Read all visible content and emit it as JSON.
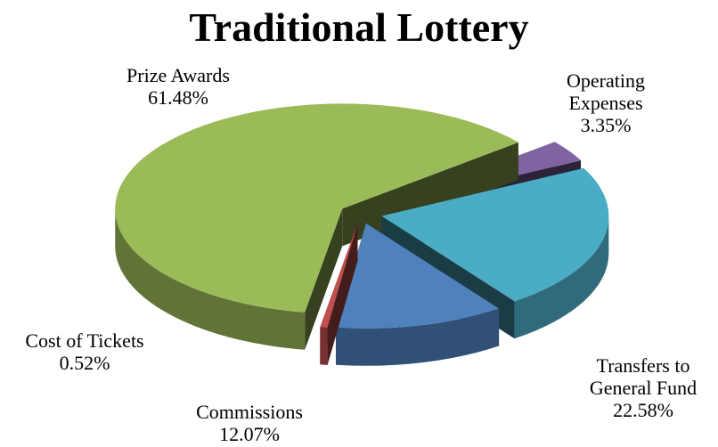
{
  "chart_data": {
    "type": "pie",
    "title": "Traditional Lottery",
    "categories": [
      "Prize Awards",
      "Operating Expenses",
      "Transfers to General Fund",
      "Commissions",
      "Cost of Tickets"
    ],
    "values": [
      61.48,
      3.35,
      22.58,
      12.07,
      0.52
    ],
    "value_labels": [
      "61.48%",
      "3.35%",
      "22.58%",
      "12.07%",
      "0.52%"
    ],
    "colors": [
      "#9bbb59",
      "#8064a2",
      "#4bacc6",
      "#4f81bd",
      "#c0504d"
    ]
  }
}
